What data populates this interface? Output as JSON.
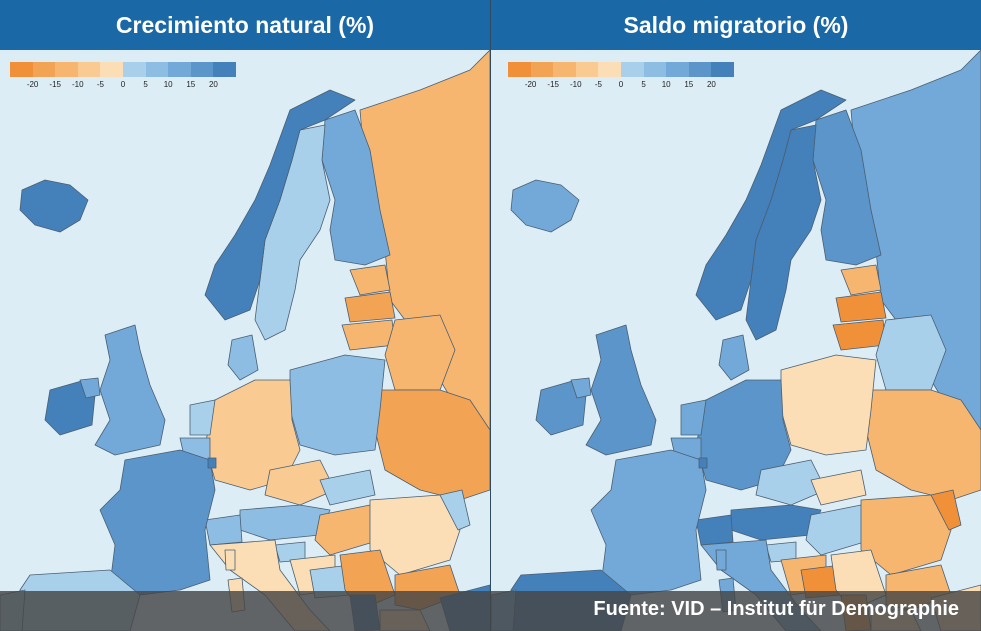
{
  "panels": [
    {
      "title": "Crecimiento natural (%)"
    },
    {
      "title": "Saldo migratorio (%)"
    }
  ],
  "legend": {
    "colors": [
      "#f0913a",
      "#f3a354",
      "#f6b66f",
      "#f9cb93",
      "#fbdeb5",
      "#a9d0ea",
      "#8dbde3",
      "#72a9d8",
      "#5b95c9",
      "#4480ba"
    ],
    "ticks": [
      "-20",
      "-15",
      "-10",
      "-5",
      "0",
      "5",
      "10",
      "15",
      "20"
    ]
  },
  "source": "Fuente: VID – Institut für Demographie",
  "colors": {
    "sea": "#dcedf6",
    "header": "#1b68a6",
    "border": "#4a5f73"
  }
}
